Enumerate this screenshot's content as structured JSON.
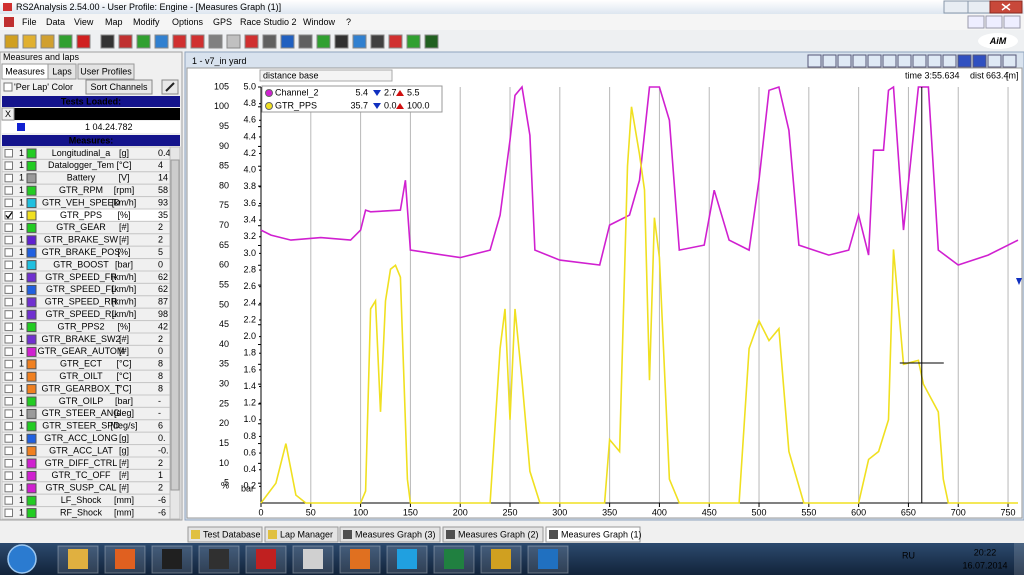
{
  "window": {
    "title": "RS2Analysis 2.54.00 - User Profile: Engine  - [Measures Graph (1)]",
    "logo": "AiM"
  },
  "menu": [
    "File",
    "Data",
    "View",
    "Map",
    "Modify",
    "Options",
    "GPS",
    "Race Studio 2",
    "Window",
    "?"
  ],
  "left_panel": {
    "title": "Measures and laps",
    "tabs": [
      "Measures",
      "Laps",
      "User Profiles"
    ],
    "per_lap_color": "'Per Lap' Color",
    "sort_button": "Sort Channels",
    "tests_header": "Tests Loaded:",
    "test_close": "X",
    "test_name": "v7_in yard",
    "lap": "1 04.24.782",
    "measures_header": "Measures:",
    "measures": [
      {
        "lap": "1",
        "name": "Longitudinal_a",
        "unit": "[g]",
        "value": "0.4",
        "color": "#22cc22",
        "checked": false
      },
      {
        "lap": "1",
        "name": "Datalogger_Tem",
        "unit": "[°C]",
        "value": "4",
        "color": "#22cc22",
        "checked": false
      },
      {
        "lap": "1",
        "name": "Battery",
        "unit": "[V]",
        "value": "14",
        "color": "#9a9a9a",
        "checked": false
      },
      {
        "lap": "1",
        "name": "GTR_RPM",
        "unit": "[rpm]",
        "value": "58",
        "color": "#22cc22",
        "checked": false
      },
      {
        "lap": "1",
        "name": "GTR_VEH_SPEED",
        "unit": "[km/h]",
        "value": "93",
        "color": "#20c0e0",
        "checked": false
      },
      {
        "lap": "1",
        "name": "GTR_PPS",
        "unit": "[%]",
        "value": "35",
        "color": "#f0e020",
        "checked": true
      },
      {
        "lap": "1",
        "name": "GTR_GEAR",
        "unit": "[#]",
        "value": "2",
        "color": "#22cc22",
        "checked": false
      },
      {
        "lap": "1",
        "name": "GTR_BRAKE_SW",
        "unit": "[#]",
        "value": "2",
        "color": "#6020d0",
        "checked": false
      },
      {
        "lap": "1",
        "name": "GTR_BRAKE_POS",
        "unit": "[%]",
        "value": "5",
        "color": "#2060e0",
        "checked": false
      },
      {
        "lap": "1",
        "name": "GTR_BOOST",
        "unit": "[bar]",
        "value": "0",
        "color": "#20c0e0",
        "checked": false
      },
      {
        "lap": "1",
        "name": "GTR_SPEED_FR",
        "unit": "[km/h]",
        "value": "62",
        "color": "#7030d0",
        "checked": false
      },
      {
        "lap": "1",
        "name": "GTR_SPEED_FL",
        "unit": "[km/h]",
        "value": "62",
        "color": "#2060e0",
        "checked": false
      },
      {
        "lap": "1",
        "name": "GTR_SPEED_RR",
        "unit": "[km/h]",
        "value": "87",
        "color": "#7030d0",
        "checked": false
      },
      {
        "lap": "1",
        "name": "GTR_SPEED_RL",
        "unit": "[km/h]",
        "value": "98",
        "color": "#7030d0",
        "checked": false
      },
      {
        "lap": "1",
        "name": "GTR_PPS2",
        "unit": "[%]",
        "value": "42",
        "color": "#22cc22",
        "checked": false
      },
      {
        "lap": "1",
        "name": "GTR_BRAKE_SW2",
        "unit": "[#]",
        "value": "2",
        "color": "#7030d0",
        "checked": false
      },
      {
        "lap": "1",
        "name": "GTR_GEAR_AUTOM",
        "unit": "[#]",
        "value": "0",
        "color": "#d020d0",
        "checked": false
      },
      {
        "lap": "1",
        "name": "GTR_ECT",
        "unit": "[°C]",
        "value": "8",
        "color": "#f08020",
        "checked": false
      },
      {
        "lap": "1",
        "name": "GTR_OILT",
        "unit": "[°C]",
        "value": "8",
        "color": "#f08020",
        "checked": false
      },
      {
        "lap": "1",
        "name": "GTR_GEARBOX_T",
        "unit": "[°C]",
        "value": "8",
        "color": "#f08020",
        "checked": false
      },
      {
        "lap": "1",
        "name": "GTR_OILP",
        "unit": "[bar]",
        "value": "-",
        "color": "#22cc22",
        "checked": false
      },
      {
        "lap": "1",
        "name": "GTR_STEER_ANG",
        "unit": "[deg]",
        "value": "-",
        "color": "#9a9a9a",
        "checked": false
      },
      {
        "lap": "1",
        "name": "GTR_STEER_SPD",
        "unit": "[deg/s]",
        "value": "6",
        "color": "#22cc22",
        "checked": false
      },
      {
        "lap": "1",
        "name": "GTR_ACC_LONG",
        "unit": "[g]",
        "value": "0.",
        "color": "#2060e0",
        "checked": false
      },
      {
        "lap": "1",
        "name": "GTR_ACC_LAT",
        "unit": "[g]",
        "value": "-0.",
        "color": "#f08020",
        "checked": false
      },
      {
        "lap": "1",
        "name": "GTR_DIFF_CTRL",
        "unit": "[#]",
        "value": "2",
        "color": "#d020d0",
        "checked": false
      },
      {
        "lap": "1",
        "name": "GTR_TC_OFF",
        "unit": "[#]",
        "value": "1",
        "color": "#d020d0",
        "checked": false
      },
      {
        "lap": "1",
        "name": "GTR_SUSP_CAL",
        "unit": "[#]",
        "value": "2",
        "color": "#d020d0",
        "checked": false
      },
      {
        "lap": "1",
        "name": "LF_Shock",
        "unit": "[mm]",
        "value": "-6",
        "color": "#22cc22",
        "checked": false
      },
      {
        "lap": "1",
        "name": "RF_Shock",
        "unit": "[mm]",
        "value": "-6",
        "color": "#22cc22",
        "checked": false
      }
    ]
  },
  "graph": {
    "title": "1 - v7_in yard",
    "base": "distance base",
    "time": "time 3:55.634",
    "dist_label": "dist",
    "dist": 663.4,
    "dist_unit": "[m]",
    "y_unit": "%",
    "y2_unit": "bar"
  },
  "chart_data": {
    "type": "line",
    "grid": "x",
    "xlim": [
      0,
      760
    ],
    "xticks": [
      0,
      50,
      100,
      150,
      200,
      250,
      300,
      350,
      400,
      450,
      500,
      550,
      600,
      650,
      700,
      750
    ],
    "ylim": [
      0,
      105
    ],
    "yticks": [
      5,
      10,
      15,
      20,
      25,
      30,
      35,
      40,
      45,
      50,
      55,
      60,
      65,
      70,
      75,
      80,
      85,
      90,
      95,
      100,
      105
    ],
    "y2lim": [
      0,
      5
    ],
    "y2ticks": [
      0.2,
      0.4,
      0.6,
      0.8,
      {
        "value": 1,
        "label": "1.0"
      },
      1.2,
      1.4,
      1.6,
      1.8,
      {
        "value": 2,
        "label": "2.0"
      },
      2.2,
      2.4,
      2.6,
      2.8,
      {
        "value": 3,
        "label": "3.0"
      },
      3.2,
      3.4,
      3.6,
      3.8,
      {
        "value": 4,
        "label": "4.0"
      },
      4.2,
      4.4,
      4.6,
      4.8,
      {
        "value": 5,
        "label": "5.0"
      }
    ],
    "series": [
      {
        "name": "Channel_2",
        "color": "#d020d0",
        "axis": "y2",
        "legend": {
          "current": "5.4",
          "min": "2.7",
          "max": "5.5"
        },
        "x": [
          0,
          10,
          30,
          60,
          90,
          100,
          105,
          110,
          140,
          145,
          150,
          200,
          230,
          240,
          250,
          255,
          262,
          270,
          275,
          300,
          340,
          350,
          370,
          380,
          390,
          400,
          410,
          420,
          445,
          455,
          470,
          490,
          500,
          510,
          520,
          530,
          540,
          570,
          590,
          600,
          610,
          615,
          625,
          630,
          635,
          645,
          660,
          670,
          680,
          700,
          730,
          760
        ],
        "values": [
          3.28,
          3.22,
          3.16,
          3.19,
          3.16,
          3.28,
          3.52,
          3.5,
          3.52,
          3.88,
          3.04,
          2.95,
          3.04,
          3.46,
          4.36,
          4.9,
          5.0,
          4.42,
          3.04,
          2.92,
          2.86,
          3.34,
          3.46,
          3.88,
          5.0,
          5.0,
          4.6,
          3.04,
          3.1,
          3.76,
          3.16,
          3.04,
          3.88,
          4.96,
          5.0,
          4.48,
          3.1,
          2.98,
          3.04,
          3.46,
          2.98,
          4.24,
          4.24,
          4.96,
          5.0,
          3.28,
          5.0,
          5.0,
          3.04,
          2.86,
          2.98,
          3.16
        ]
      },
      {
        "name": "GTR_PPS",
        "color": "#f0e020",
        "axis": "y",
        "legend": {
          "current": "35.7",
          "min": "0.0",
          "max": "100.0"
        },
        "x": [
          0,
          15,
          25,
          35,
          45,
          100,
          105,
          110,
          115,
          120,
          125,
          130,
          135,
          140,
          147,
          150,
          230,
          240,
          245,
          250,
          255,
          262,
          270,
          280,
          345,
          350,
          360,
          368,
          372,
          380,
          385,
          390,
          395,
          400,
          410,
          420,
          480,
          490,
          500,
          510,
          520,
          530,
          545,
          600,
          610,
          620,
          630,
          635,
          645,
          660,
          665,
          680,
          685,
          690,
          760
        ],
        "values": [
          0,
          5,
          15,
          2,
          0,
          0,
          3,
          49,
          51,
          23,
          51,
          59,
          60,
          57,
          6,
          0,
          0,
          39,
          49,
          21,
          49,
          31,
          8,
          0,
          0,
          16,
          13,
          85,
          100,
          88,
          79,
          31,
          72,
          62,
          6,
          0,
          0,
          39,
          46,
          41,
          44,
          13,
          0,
          0,
          11,
          13,
          21,
          64,
          35,
          36,
          30,
          23,
          6,
          0,
          0
        ]
      }
    ]
  },
  "tabs": [
    "Test Database",
    "Lap Manager",
    "Measures Graph (3)",
    "Measures Graph (2)",
    "Measures Graph (1)"
  ],
  "taskbar": {
    "lang": "RU",
    "time": "20:22",
    "date": "16.07.2014"
  }
}
